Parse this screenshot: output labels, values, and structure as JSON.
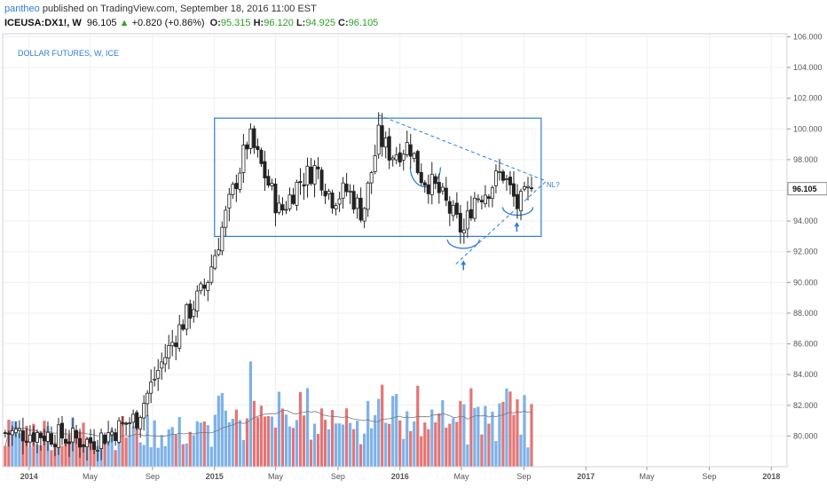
{
  "header": {
    "user": "pantheo",
    "published": "published on TradingView.com, September 18, 2016 11:00 EST",
    "symbol": "ICEUSA:DX1!, W",
    "last": "96.105",
    "change_arrow": "▲",
    "change": "+0.820 (+0.86%)",
    "o_label": "O:",
    "o_value": "95.315",
    "h_label": "H:",
    "h_value": "96.120",
    "l_label": "L:",
    "l_value": "94.925",
    "c_label": "C:",
    "c_value": "96.105"
  },
  "chart_title": "DOLLAR FUTURES, W, ICE",
  "annotation_nl": "NL?",
  "last_price_label": "96.105",
  "colors": {
    "up": "#ffffff",
    "down": "#222222",
    "wick": "#222222",
    "vol_up": "#6fa8e6",
    "vol_down": "#e06666",
    "annotation": "#2e7cd6",
    "grid": "#eef0f3",
    "axis_text": "#555555"
  },
  "chart_data": {
    "type": "candlestick",
    "interval": "weekly",
    "x_ticks": [
      "2014",
      "May",
      "Sep",
      "2015",
      "May",
      "Sep",
      "2016",
      "May",
      "Sep",
      "2017",
      "May",
      "Sep",
      "2018"
    ],
    "y_ticks": [
      "80.000",
      "82.000",
      "84.000",
      "86.000",
      "88.000",
      "90.000",
      "92.000",
      "94.000",
      "96.000",
      "98.000",
      "100.000",
      "102.000",
      "104.000",
      "106.000"
    ],
    "ylim": [
      78,
      106.2
    ],
    "price_anchors": [
      [
        "2014-01-01",
        80.2
      ],
      [
        "2014-03-01",
        80.0
      ],
      [
        "2014-05-01",
        79.6
      ],
      [
        "2014-06-15",
        80.3
      ],
      [
        "2014-08-01",
        81.2
      ],
      [
        "2014-09-15",
        84.5
      ],
      [
        "2014-11-01",
        87.5
      ],
      [
        "2014-12-15",
        89.8
      ],
      [
        "2015-01-20",
        94.0
      ],
      [
        "2015-03-10",
        99.5
      ],
      [
        "2015-04-10",
        97.0
      ],
      [
        "2015-05-10",
        94.5
      ],
      [
        "2015-06-15",
        96.5
      ],
      [
        "2015-07-20",
        97.5
      ],
      [
        "2015-08-20",
        95.5
      ],
      [
        "2015-09-20",
        96.0
      ],
      [
        "2015-10-20",
        94.5
      ],
      [
        "2015-11-20",
        99.5
      ],
      [
        "2015-12-15",
        98.3
      ],
      [
        "2016-01-20",
        99.0
      ],
      [
        "2016-02-10",
        97.0
      ],
      [
        "2016-03-15",
        96.0
      ],
      [
        "2016-04-15",
        94.3
      ],
      [
        "2016-05-05",
        93.2
      ],
      [
        "2016-05-25",
        95.5
      ],
      [
        "2016-06-20",
        96.0
      ],
      [
        "2016-07-20",
        97.2
      ],
      [
        "2016-08-20",
        94.9
      ],
      [
        "2016-09-16",
        96.105
      ]
    ],
    "consolidation_box": {
      "x0": "2015-01-01",
      "x1": "2016-10-05",
      "y0": 93.0,
      "y1": 100.7
    },
    "trendlines": [
      {
        "name": "upper",
        "from": [
          "2015-11-20",
          100.9
        ],
        "to": [
          "2016-10-15",
          96.6
        ],
        "dashed": true
      },
      {
        "name": "lower",
        "from": [
          "2016-04-20",
          91.2
        ],
        "to": [
          "2016-10-15",
          96.6
        ],
        "dashed": true
      }
    ],
    "volume": "bars, relative scale, red for down weeks and blue for up weeks, with moving average line"
  }
}
